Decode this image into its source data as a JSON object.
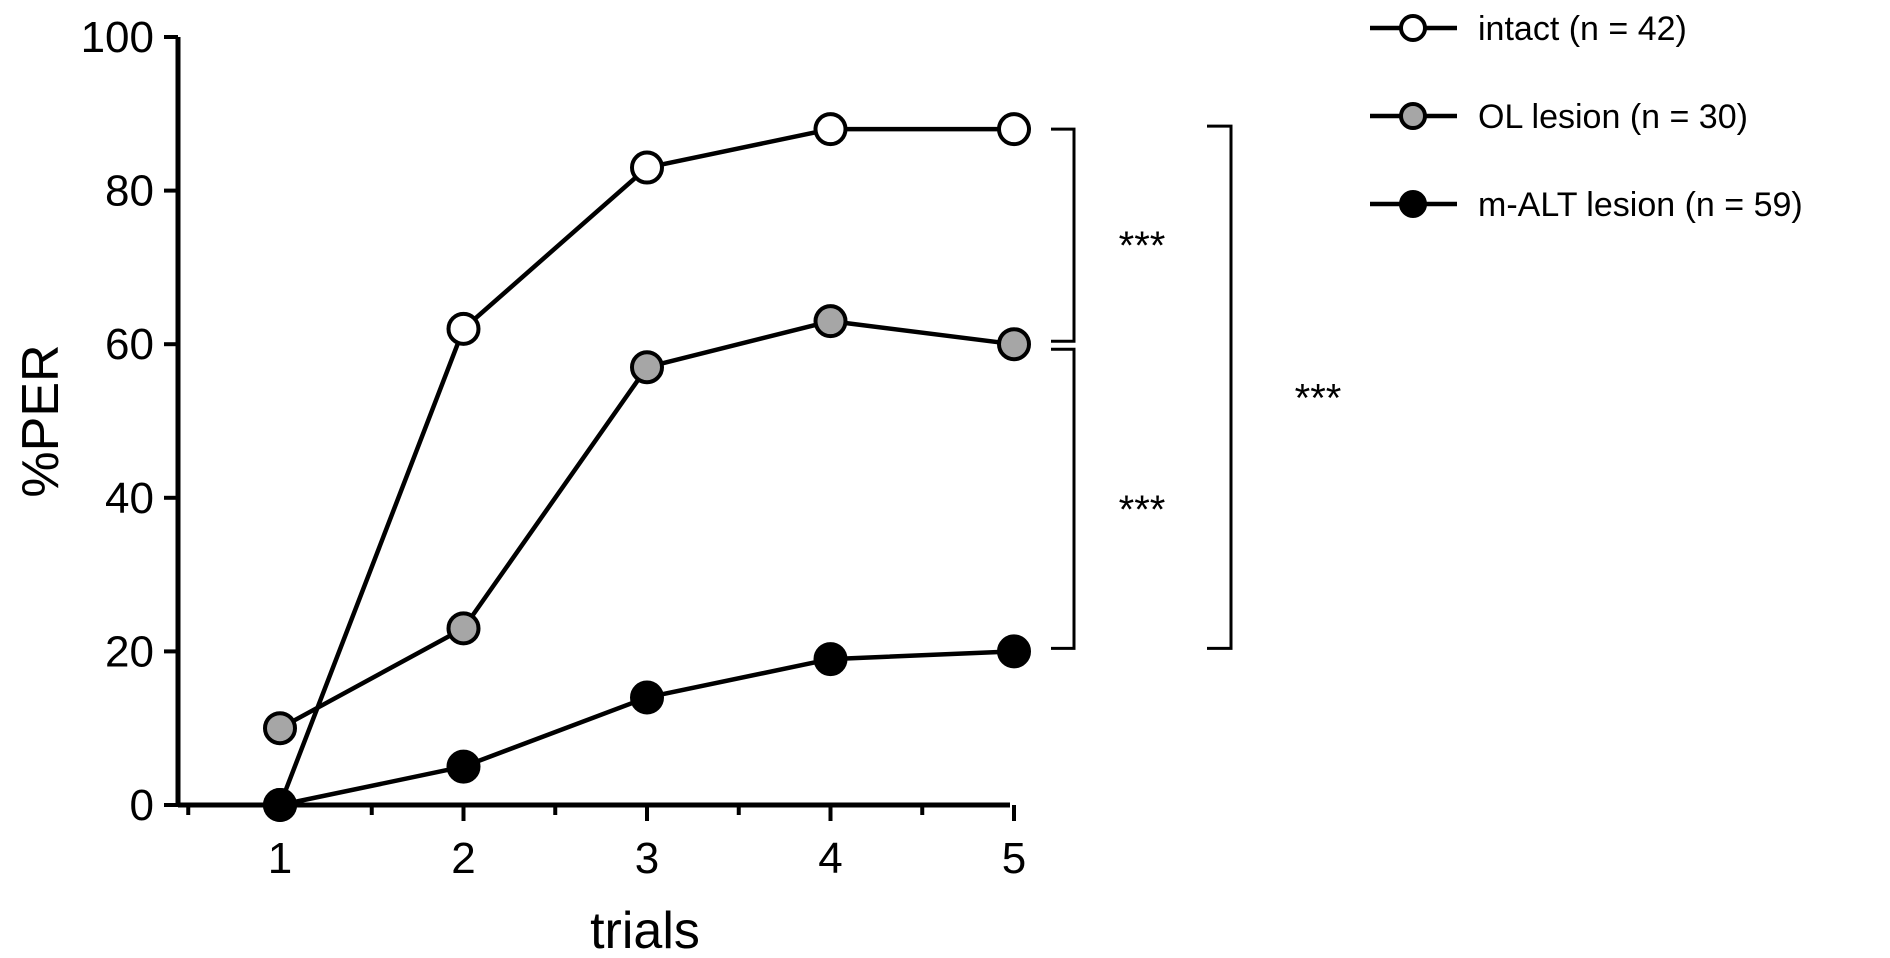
{
  "chart_data": {
    "type": "line",
    "title": "",
    "xlabel": "trials",
    "ylabel": "%PER",
    "x": [
      1,
      2,
      3,
      4,
      5
    ],
    "xlim": [
      0.5,
      5
    ],
    "ylim": [
      0,
      100
    ],
    "x_ticks": [
      "1",
      "2",
      "3",
      "4",
      "5"
    ],
    "y_ticks": [
      "0",
      "20",
      "40",
      "60",
      "80",
      "100"
    ],
    "grid": false,
    "legend_position": "top-right",
    "series": [
      {
        "name": "intact (n = 42)",
        "values": [
          0,
          62,
          83,
          88,
          88
        ],
        "marker_fill": "#ffffff"
      },
      {
        "name": "OL lesion (n = 30)",
        "values": [
          10,
          23,
          57,
          63,
          60
        ],
        "marker_fill": "#a6a6a6"
      },
      {
        "name": "m-ALT lesion (n = 59)",
        "values": [
          0,
          5,
          14,
          19,
          20
        ],
        "marker_fill": "#000000"
      }
    ],
    "significance": [
      {
        "label": "***",
        "between": [
          "intact (n = 42)",
          "OL lesion (n = 30)"
        ]
      },
      {
        "label": "***",
        "between": [
          "OL lesion (n = 30)",
          "m-ALT lesion (n = 59)"
        ]
      },
      {
        "label": "***",
        "between": [
          "intact (n = 42)",
          "m-ALT lesion (n = 59)"
        ]
      }
    ],
    "line_color": "#000000"
  }
}
